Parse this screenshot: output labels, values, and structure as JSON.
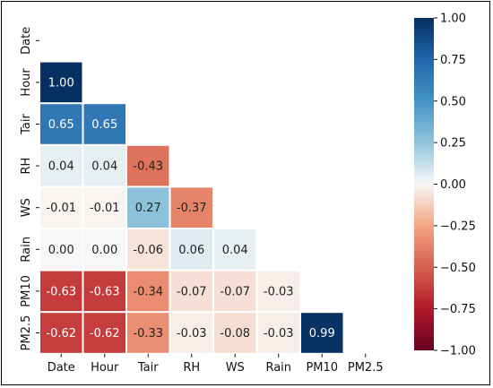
{
  "chart_data": {
    "type": "heatmap",
    "title": "",
    "xlabel": "",
    "ylabel": "",
    "variables": [
      "Date",
      "Hour",
      "Tair",
      "RH",
      "WS",
      "Rain",
      "PM10",
      "PM2.5"
    ],
    "mask": "upper-triangle-including-diagonal",
    "matrix": [
      [
        null,
        null,
        null,
        null,
        null,
        null,
        null,
        null
      ],
      [
        1.0,
        null,
        null,
        null,
        null,
        null,
        null,
        null
      ],
      [
        0.65,
        0.65,
        null,
        null,
        null,
        null,
        null,
        null
      ],
      [
        0.04,
        0.04,
        -0.43,
        null,
        null,
        null,
        null,
        null
      ],
      [
        -0.01,
        -0.01,
        0.27,
        -0.37,
        null,
        null,
        null,
        null
      ],
      [
        0.0,
        0.0,
        -0.06,
        0.06,
        0.04,
        null,
        null,
        null
      ],
      [
        -0.63,
        -0.63,
        -0.34,
        -0.07,
        -0.07,
        -0.03,
        null,
        null
      ],
      [
        -0.62,
        -0.62,
        -0.33,
        -0.03,
        -0.08,
        -0.03,
        0.99,
        null
      ]
    ],
    "cell_labels": [
      [
        "",
        "",
        "",
        "",
        "",
        "",
        "",
        ""
      ],
      [
        "1.00",
        "",
        "",
        "",
        "",
        "",
        "",
        ""
      ],
      [
        "0.65",
        "0.65",
        "",
        "",
        "",
        "",
        "",
        ""
      ],
      [
        "0.04",
        "0.04",
        "-0.43",
        "",
        "",
        "",
        "",
        ""
      ],
      [
        "-0.01",
        "-0.01",
        "0.27",
        "-0.37",
        "",
        "",
        "",
        ""
      ],
      [
        "0.00",
        "0.00",
        "-0.06",
        "0.06",
        "0.04",
        "",
        "",
        ""
      ],
      [
        "-0.63",
        "-0.63",
        "-0.34",
        "-0.07",
        "-0.07",
        "-0.03",
        "",
        ""
      ],
      [
        "-0.62",
        "-0.62",
        "-0.33",
        "-0.03",
        "-0.08",
        "-0.03",
        "0.99",
        ""
      ]
    ],
    "colormap": "RdBu",
    "vmin": -1.0,
    "vmax": 1.0,
    "colorbar_ticks": [
      1.0,
      0.75,
      0.5,
      0.25,
      0.0,
      -0.25,
      -0.5,
      -0.75,
      -1.0
    ],
    "colorbar_tick_labels": [
      "1.00",
      "0.75",
      "0.50",
      "0.25",
      "0.00",
      "−0.25",
      "−0.50",
      "−0.75",
      "−1.00"
    ],
    "legend": "colorbar-right",
    "grid": false
  }
}
